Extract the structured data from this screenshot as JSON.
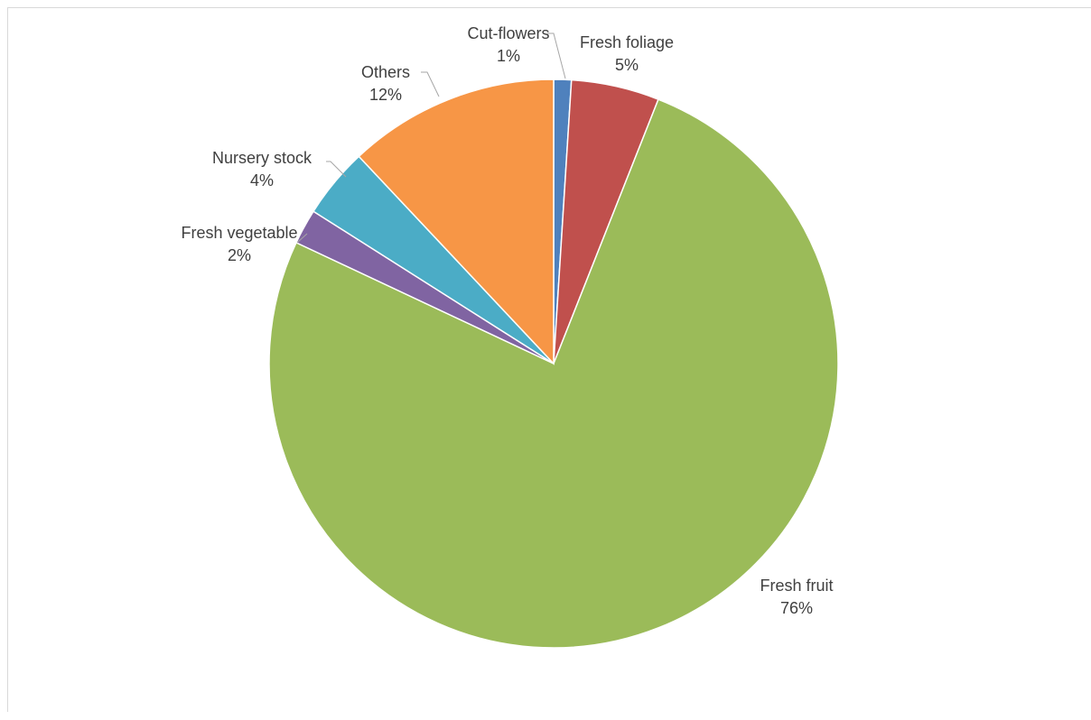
{
  "chart_data": {
    "type": "pie",
    "title": "",
    "start_angle_deg": 0,
    "direction": "clockwise",
    "slices": [
      {
        "label": "Cut-flowers",
        "value": 1,
        "value_label": "1%",
        "color": "#4f81bd"
      },
      {
        "label": "Fresh foliage",
        "value": 5,
        "value_label": "5%",
        "color": "#c0504d"
      },
      {
        "label": "Fresh fruit",
        "value": 76,
        "value_label": "76%",
        "color": "#9bbb59"
      },
      {
        "label": "Fresh vegetable",
        "value": 2,
        "value_label": "2%",
        "color": "#8064a2"
      },
      {
        "label": "Nursery stock",
        "value": 4,
        "value_label": "4%",
        "color": "#4bacc6"
      },
      {
        "label": "Others",
        "value": 12,
        "value_label": "12%",
        "color": "#f79646"
      }
    ],
    "legend": "none",
    "data_labels": "outside with leader lines",
    "border_color": "#ffffff",
    "label_color": "#404040",
    "leader_color": "#a6a6a6"
  }
}
